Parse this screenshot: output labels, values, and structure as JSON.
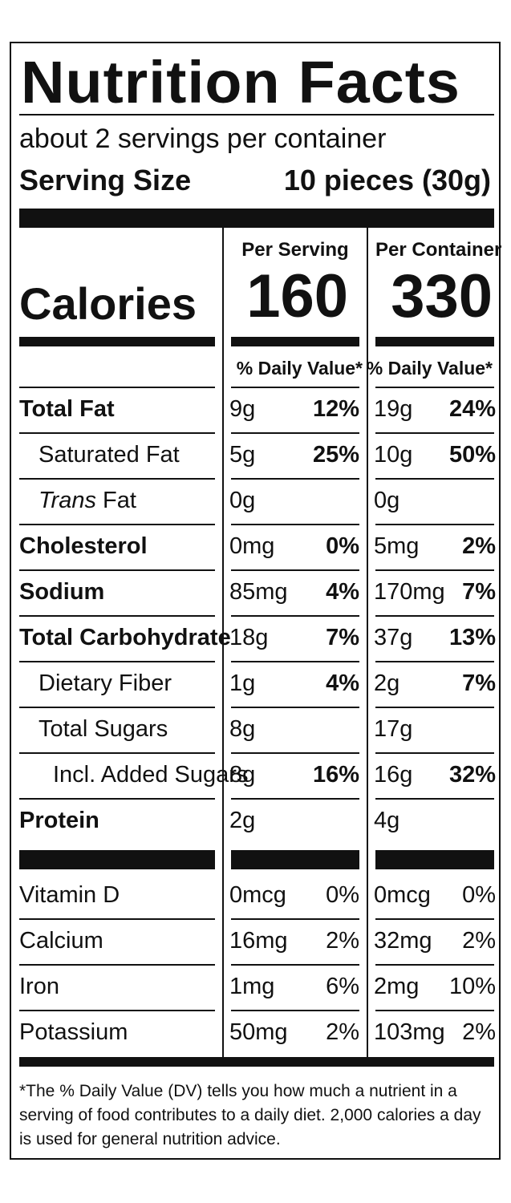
{
  "title": "Nutrition Facts",
  "servings_per_container": "about 2 servings per container",
  "serving_size_label": "Serving Size",
  "serving_size_value": "10 pieces (30g)",
  "col_per_serving": "Per Serving",
  "col_per_container": "Per Container",
  "calories_label": "Calories",
  "calories_per_serving": "160",
  "calories_per_container": "330",
  "daily_value_header": "% Daily Value*",
  "nutrients": [
    {
      "name": "Total Fat",
      "ps_amt": "9g",
      "ps_dv": "12%",
      "pc_amt": "19g",
      "pc_dv": "24%"
    },
    {
      "name": "Saturated Fat",
      "ps_amt": "5g",
      "ps_dv": "25%",
      "pc_amt": "10g",
      "pc_dv": "50%"
    },
    {
      "name_italic": "Trans",
      "name_rest": " Fat",
      "ps_amt": "0g",
      "ps_dv": "",
      "pc_amt": "0g",
      "pc_dv": ""
    },
    {
      "name": "Cholesterol",
      "ps_amt": "0mg",
      "ps_dv": "0%",
      "pc_amt": "5mg",
      "pc_dv": "2%"
    },
    {
      "name": "Sodium",
      "ps_amt": "85mg",
      "ps_dv": "4%",
      "pc_amt": "170mg",
      "pc_dv": "7%"
    },
    {
      "name": "Total Carbohydrate",
      "ps_amt": "18g",
      "ps_dv": "7%",
      "pc_amt": "37g",
      "pc_dv": "13%"
    },
    {
      "name": "Dietary Fiber",
      "ps_amt": "1g",
      "ps_dv": "4%",
      "pc_amt": "2g",
      "pc_dv": "7%"
    },
    {
      "name": "Total Sugars",
      "ps_amt": "8g",
      "ps_dv": "",
      "pc_amt": "17g",
      "pc_dv": ""
    },
    {
      "name": "Incl. Added Sugars",
      "ps_amt": "8g",
      "ps_dv": "16%",
      "pc_amt": "16g",
      "pc_dv": "32%"
    },
    {
      "name": "Protein",
      "ps_amt": "2g",
      "ps_dv": "",
      "pc_amt": "4g",
      "pc_dv": ""
    }
  ],
  "vitamins": [
    {
      "name": "Vitamin D",
      "ps_amt": "0mcg",
      "ps_dv": "0%",
      "pc_amt": "0mcg",
      "pc_dv": "0%"
    },
    {
      "name": "Calcium",
      "ps_amt": "16mg",
      "ps_dv": "2%",
      "pc_amt": "32mg",
      "pc_dv": "2%"
    },
    {
      "name": "Iron",
      "ps_amt": "1mg",
      "ps_dv": "6%",
      "pc_amt": "2mg",
      "pc_dv": "10%"
    },
    {
      "name": "Potassium",
      "ps_amt": "50mg",
      "ps_dv": "2%",
      "pc_amt": "103mg",
      "pc_dv": "2%"
    }
  ],
  "footnote": "*The % Daily Value (DV) tells you how much a nutrient in a serving of food contributes to a daily diet. 2,000 calories a day is used for general nutrition advice."
}
